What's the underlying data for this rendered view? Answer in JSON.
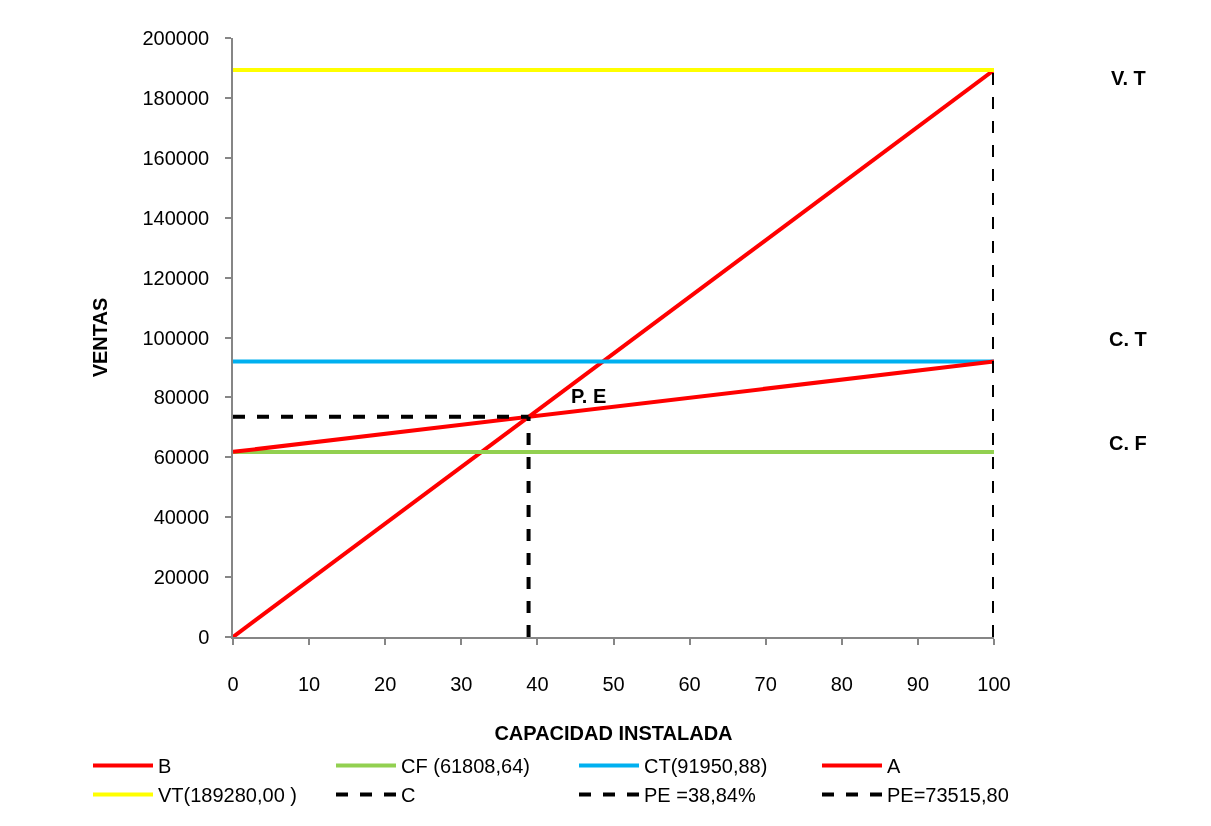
{
  "chart_data": {
    "type": "line",
    "xlabel": "CAPACIDAD INSTALADA",
    "ylabel": "VENTAS",
    "xlim": [
      0,
      100
    ],
    "xticks": [
      0,
      10,
      20,
      30,
      40,
      50,
      60,
      70,
      80,
      90,
      100
    ],
    "ylim": [
      0,
      200000
    ],
    "yticks": [
      0,
      20000,
      40000,
      60000,
      80000,
      100000,
      120000,
      140000,
      160000,
      180000,
      200000
    ],
    "grid": false,
    "legend": "bottom",
    "marker": "none",
    "series": [
      {
        "name": "B",
        "color": "#ff0000",
        "line_style": "solid",
        "x": [
          0,
          100
        ],
        "values": [
          0,
          189280
        ]
      },
      {
        "name": "CF (61808,64)",
        "color": "#92d050",
        "line_style": "solid",
        "x": [
          0,
          100
        ],
        "values": [
          61808.64,
          61808.64
        ]
      },
      {
        "name": "CT(91950,88)",
        "color": "#00b0f0",
        "line_style": "solid",
        "x": [
          0,
          100
        ],
        "values": [
          91950.88,
          91950.88
        ]
      },
      {
        "name": "A",
        "color": "#ff0000",
        "line_style": "solid",
        "x": [
          0,
          100
        ],
        "values": [
          61808.64,
          91950.88
        ]
      },
      {
        "name": "VT(189280,00 )",
        "color": "#ffff00",
        "line_style": "solid",
        "x": [
          0,
          100
        ],
        "values": [
          189280,
          189280
        ]
      },
      {
        "name": "C",
        "color": "#000000",
        "line_style": "dashed",
        "x": [
          100,
          100
        ],
        "values": [
          0,
          189280
        ]
      },
      {
        "name": "PE =38,84%",
        "color": "#000000",
        "line_style": "dashed",
        "x": [
          38.84,
          38.84
        ],
        "values": [
          0,
          73515.8
        ]
      },
      {
        "name": "PE=73515,80",
        "color": "#000000",
        "line_style": "dashed",
        "x": [
          0,
          38.84
        ],
        "values": [
          73515.8,
          73515.8
        ]
      }
    ],
    "annotations": [
      "V. T",
      "C. T",
      "C. F",
      {
        "text": "P. E",
        "x": 38.84,
        "y": 73515.8
      }
    ]
  }
}
